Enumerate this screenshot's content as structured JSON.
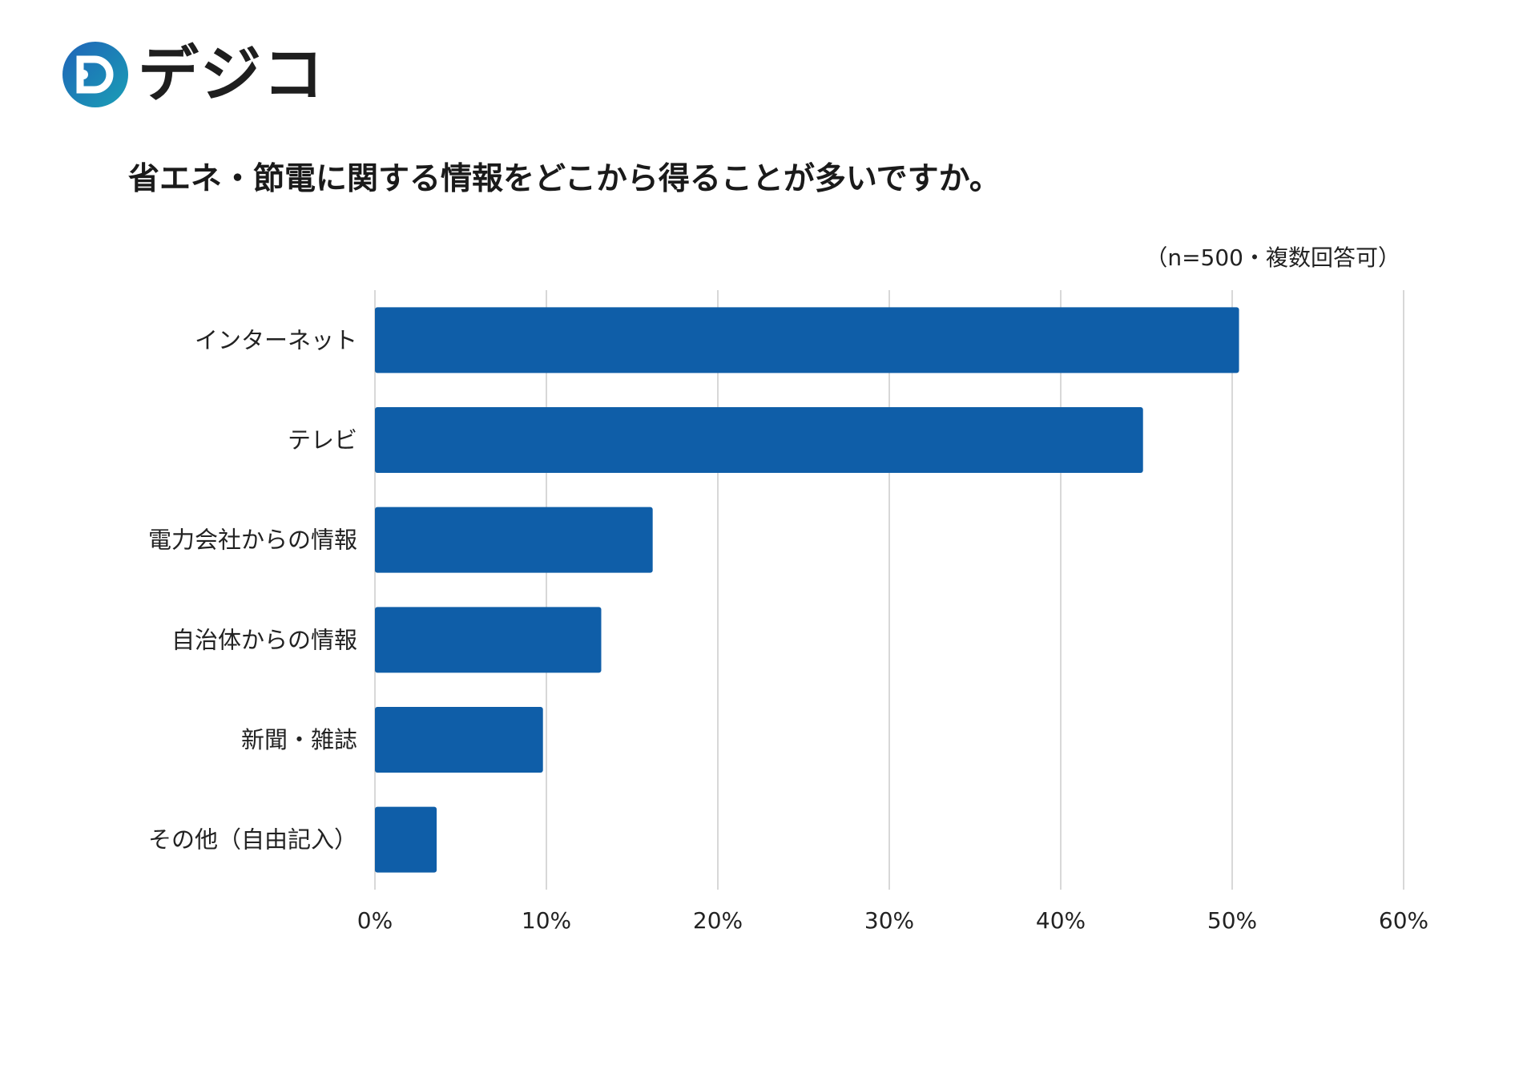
{
  "brand": {
    "name": "デジコ",
    "logo_color_start": "#1f63b8",
    "logo_color_end": "#1a9fb5"
  },
  "chart_data": {
    "type": "bar",
    "orientation": "horizontal",
    "title": "省エネ・節電に関する情報をどこから得ることが多いですか。",
    "note": "（n=500・複数回答可）",
    "categories": [
      "インターネット",
      "テレビ",
      "電力会社からの情報",
      "自治体からの情報",
      "新聞・雑誌",
      "その他（自由記入）"
    ],
    "values": [
      50.4,
      44.8,
      16.2,
      13.2,
      9.8,
      3.6
    ],
    "value_unit": "%",
    "xlim": [
      0,
      60
    ],
    "xticks": [
      "0%",
      "10%",
      "20%",
      "30%",
      "40%",
      "50%",
      "60%"
    ],
    "xlabel": "",
    "ylabel": "",
    "grid": true,
    "bar_color": "#0f5ea8",
    "grid_color": "#cccccc"
  }
}
